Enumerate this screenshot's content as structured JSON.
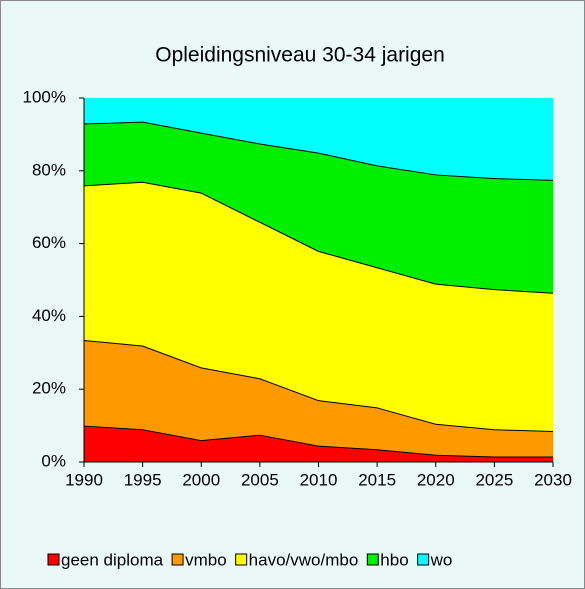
{
  "chart_data": {
    "type": "stacked-area",
    "title": "Opleidingsniveau 30-34 jarigen",
    "x": [
      1990,
      1995,
      2000,
      2005,
      2010,
      2015,
      2020,
      2025,
      2030
    ],
    "xlim": [
      1990,
      2030
    ],
    "xticks": [
      1990,
      1995,
      2000,
      2005,
      2010,
      2015,
      2020,
      2025,
      2030
    ],
    "ylim": [
      0,
      100
    ],
    "yticks": [
      {
        "value": 0,
        "label": "0%"
      },
      {
        "value": 20,
        "label": "20%"
      },
      {
        "value": 40,
        "label": "40%"
      },
      {
        "value": 60,
        "label": "60%"
      },
      {
        "value": 80,
        "label": "80%"
      },
      {
        "value": 100,
        "label": "100%"
      }
    ],
    "legend": "bottom",
    "series": [
      {
        "name": "geen diploma",
        "color": "#ff0000",
        "values": [
          10,
          9,
          6,
          7.5,
          4.5,
          3.5,
          2,
          1.5,
          1.5
        ]
      },
      {
        "name": "vmbo",
        "color": "#ff9900",
        "values": [
          23.5,
          23,
          20,
          15.5,
          12.5,
          11.5,
          8.5,
          7.5,
          7
        ]
      },
      {
        "name": "havo/vwo/mbo",
        "color": "#ffff00",
        "values": [
          42.5,
          45,
          48,
          43,
          41,
          38.5,
          38.5,
          38.5,
          38
        ]
      },
      {
        "name": "hbo",
        "color": "#00ee00",
        "values": [
          17,
          16.5,
          16.5,
          21.5,
          27,
          28,
          30,
          30.5,
          31
        ]
      },
      {
        "name": "wo",
        "color": "#00ffff",
        "values": [
          7,
          6.5,
          9.5,
          12.5,
          15,
          18.5,
          21,
          22,
          22.5
        ]
      }
    ]
  }
}
